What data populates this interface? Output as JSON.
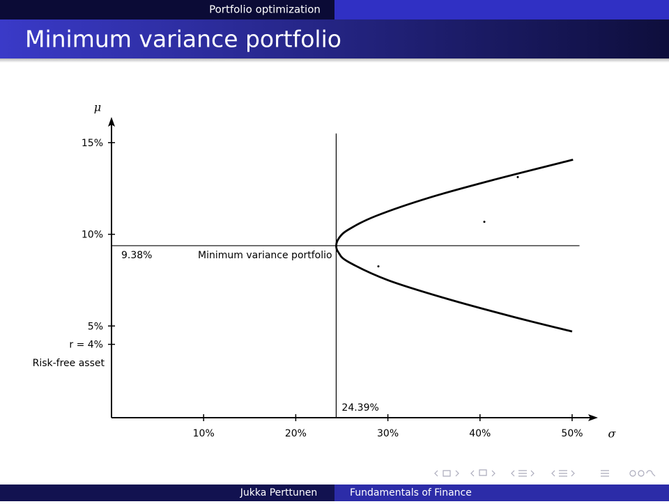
{
  "header": {
    "section": "Portfolio optimization",
    "title": "Minimum variance portfolio"
  },
  "footer": {
    "author": "Jukka Perttunen",
    "title": "Fundamentals of Finance"
  },
  "chart_data": {
    "type": "line",
    "xlabel": "σ",
    "ylabel": "μ",
    "xlim": [
      0,
      52.8
    ],
    "ylim": [
      0,
      16.4
    ],
    "xticks": [
      {
        "value": 10,
        "label": "10%"
      },
      {
        "value": 20,
        "label": "20%"
      },
      {
        "value": 30,
        "label": "30%"
      },
      {
        "value": 40,
        "label": "40%"
      },
      {
        "value": 50,
        "label": "50%"
      }
    ],
    "yticks": [
      {
        "value": 4,
        "label": "r = 4%"
      },
      {
        "value": 5,
        "label": "5%"
      },
      {
        "value": 10,
        "label": "10%"
      },
      {
        "value": 15,
        "label": "15%"
      }
    ],
    "x": [
      50.0,
      43.6,
      36.3,
      30.0,
      25.7,
      24.65,
      24.39,
      24.7,
      25.7,
      28.7,
      34.5,
      41.7,
      50.1
    ],
    "series": [
      {
        "color": "#000000",
        "values": [
          4.7,
          5.5,
          6.5,
          7.5,
          8.5,
          9.0,
          9.38,
          9.8,
          10.25,
          11,
          12,
          13,
          14.07
        ]
      }
    ],
    "assets": {
      "type": "scatter",
      "color": "#000000",
      "x": [
        28.97,
        40.47,
        44.1
      ],
      "values": [
        8.25,
        10.68,
        13.12
      ]
    },
    "min_variance": {
      "x": 24.39,
      "y": 9.38,
      "x_label": "24.39%",
      "y_label": "9.38%",
      "label": "Minimum variance portfolio",
      "line_top": 15.5,
      "line_right": 50.8
    },
    "risk_free_label": "Risk-free asset"
  }
}
